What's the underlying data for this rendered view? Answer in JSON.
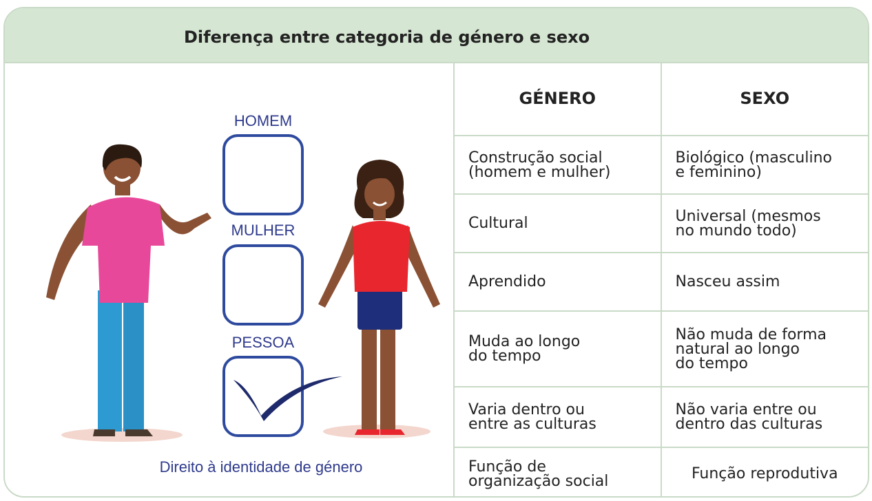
{
  "header": {
    "title": "Diferença entre categoria de género e sexo"
  },
  "illustration": {
    "options": [
      "HOMEM",
      "MULHER",
      "PESSOA"
    ],
    "caption": "Direito à identidade de género"
  },
  "table": {
    "columns": [
      "GÉNERO",
      "SEXO"
    ],
    "rows": [
      [
        "Construção social\n(homem e mulher)",
        "Biológico (masculino\ne feminino)"
      ],
      [
        "Cultural",
        "Universal (mesmos\nno mundo todo)"
      ],
      [
        "Aprendido",
        "Nasceu assim"
      ],
      [
        "Muda ao longo\ndo tempo",
        "Não muda de forma\nnatural ao longo\ndo tempo"
      ],
      [
        "Varia dentro ou\nentre as culturas",
        "Não varia entre ou\ndentro das culturas"
      ],
      [
        "Função de\norganização social",
        "Função reprodutiva"
      ]
    ]
  }
}
